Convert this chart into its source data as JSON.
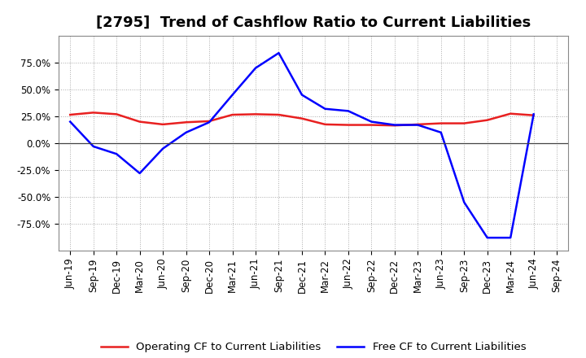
{
  "title": "[2795]  Trend of Cashflow Ratio to Current Liabilities",
  "x_labels": [
    "Jun-19",
    "Sep-19",
    "Dec-19",
    "Mar-20",
    "Jun-20",
    "Sep-20",
    "Dec-20",
    "Mar-21",
    "Jun-21",
    "Sep-21",
    "Dec-21",
    "Mar-22",
    "Jun-22",
    "Sep-22",
    "Dec-22",
    "Mar-23",
    "Jun-23",
    "Sep-23",
    "Dec-23",
    "Mar-24",
    "Jun-24",
    "Sep-24"
  ],
  "operating_cf": [
    0.265,
    0.285,
    0.27,
    0.2,
    0.175,
    0.195,
    0.205,
    0.265,
    0.27,
    0.265,
    0.23,
    0.175,
    0.17,
    0.17,
    0.165,
    0.175,
    0.185,
    0.185,
    0.215,
    0.275,
    0.26,
    null
  ],
  "free_cf": [
    0.2,
    -0.03,
    -0.1,
    -0.28,
    -0.05,
    0.1,
    0.195,
    0.45,
    0.7,
    0.84,
    0.45,
    0.32,
    0.3,
    0.2,
    0.17,
    0.17,
    0.1,
    -0.55,
    -0.88,
    -0.88,
    0.27,
    null
  ],
  "ylim": [
    -1.0,
    1.0
  ],
  "yticks": [
    -0.75,
    -0.5,
    -0.25,
    0.0,
    0.25,
    0.5,
    0.75
  ],
  "ytick_labels": [
    "-75.0%",
    "-50.0%",
    "-25.0%",
    "0.0%",
    "25.0%",
    "50.0%",
    "75.0%"
  ],
  "operating_color": "#e82020",
  "free_color": "#0000ff",
  "legend_operating": "Operating CF to Current Liabilities",
  "legend_free": "Free CF to Current Liabilities",
  "bg_color": "#ffffff",
  "grid_color": "#aaaaaa",
  "title_fontsize": 13,
  "label_fontsize": 8.5
}
